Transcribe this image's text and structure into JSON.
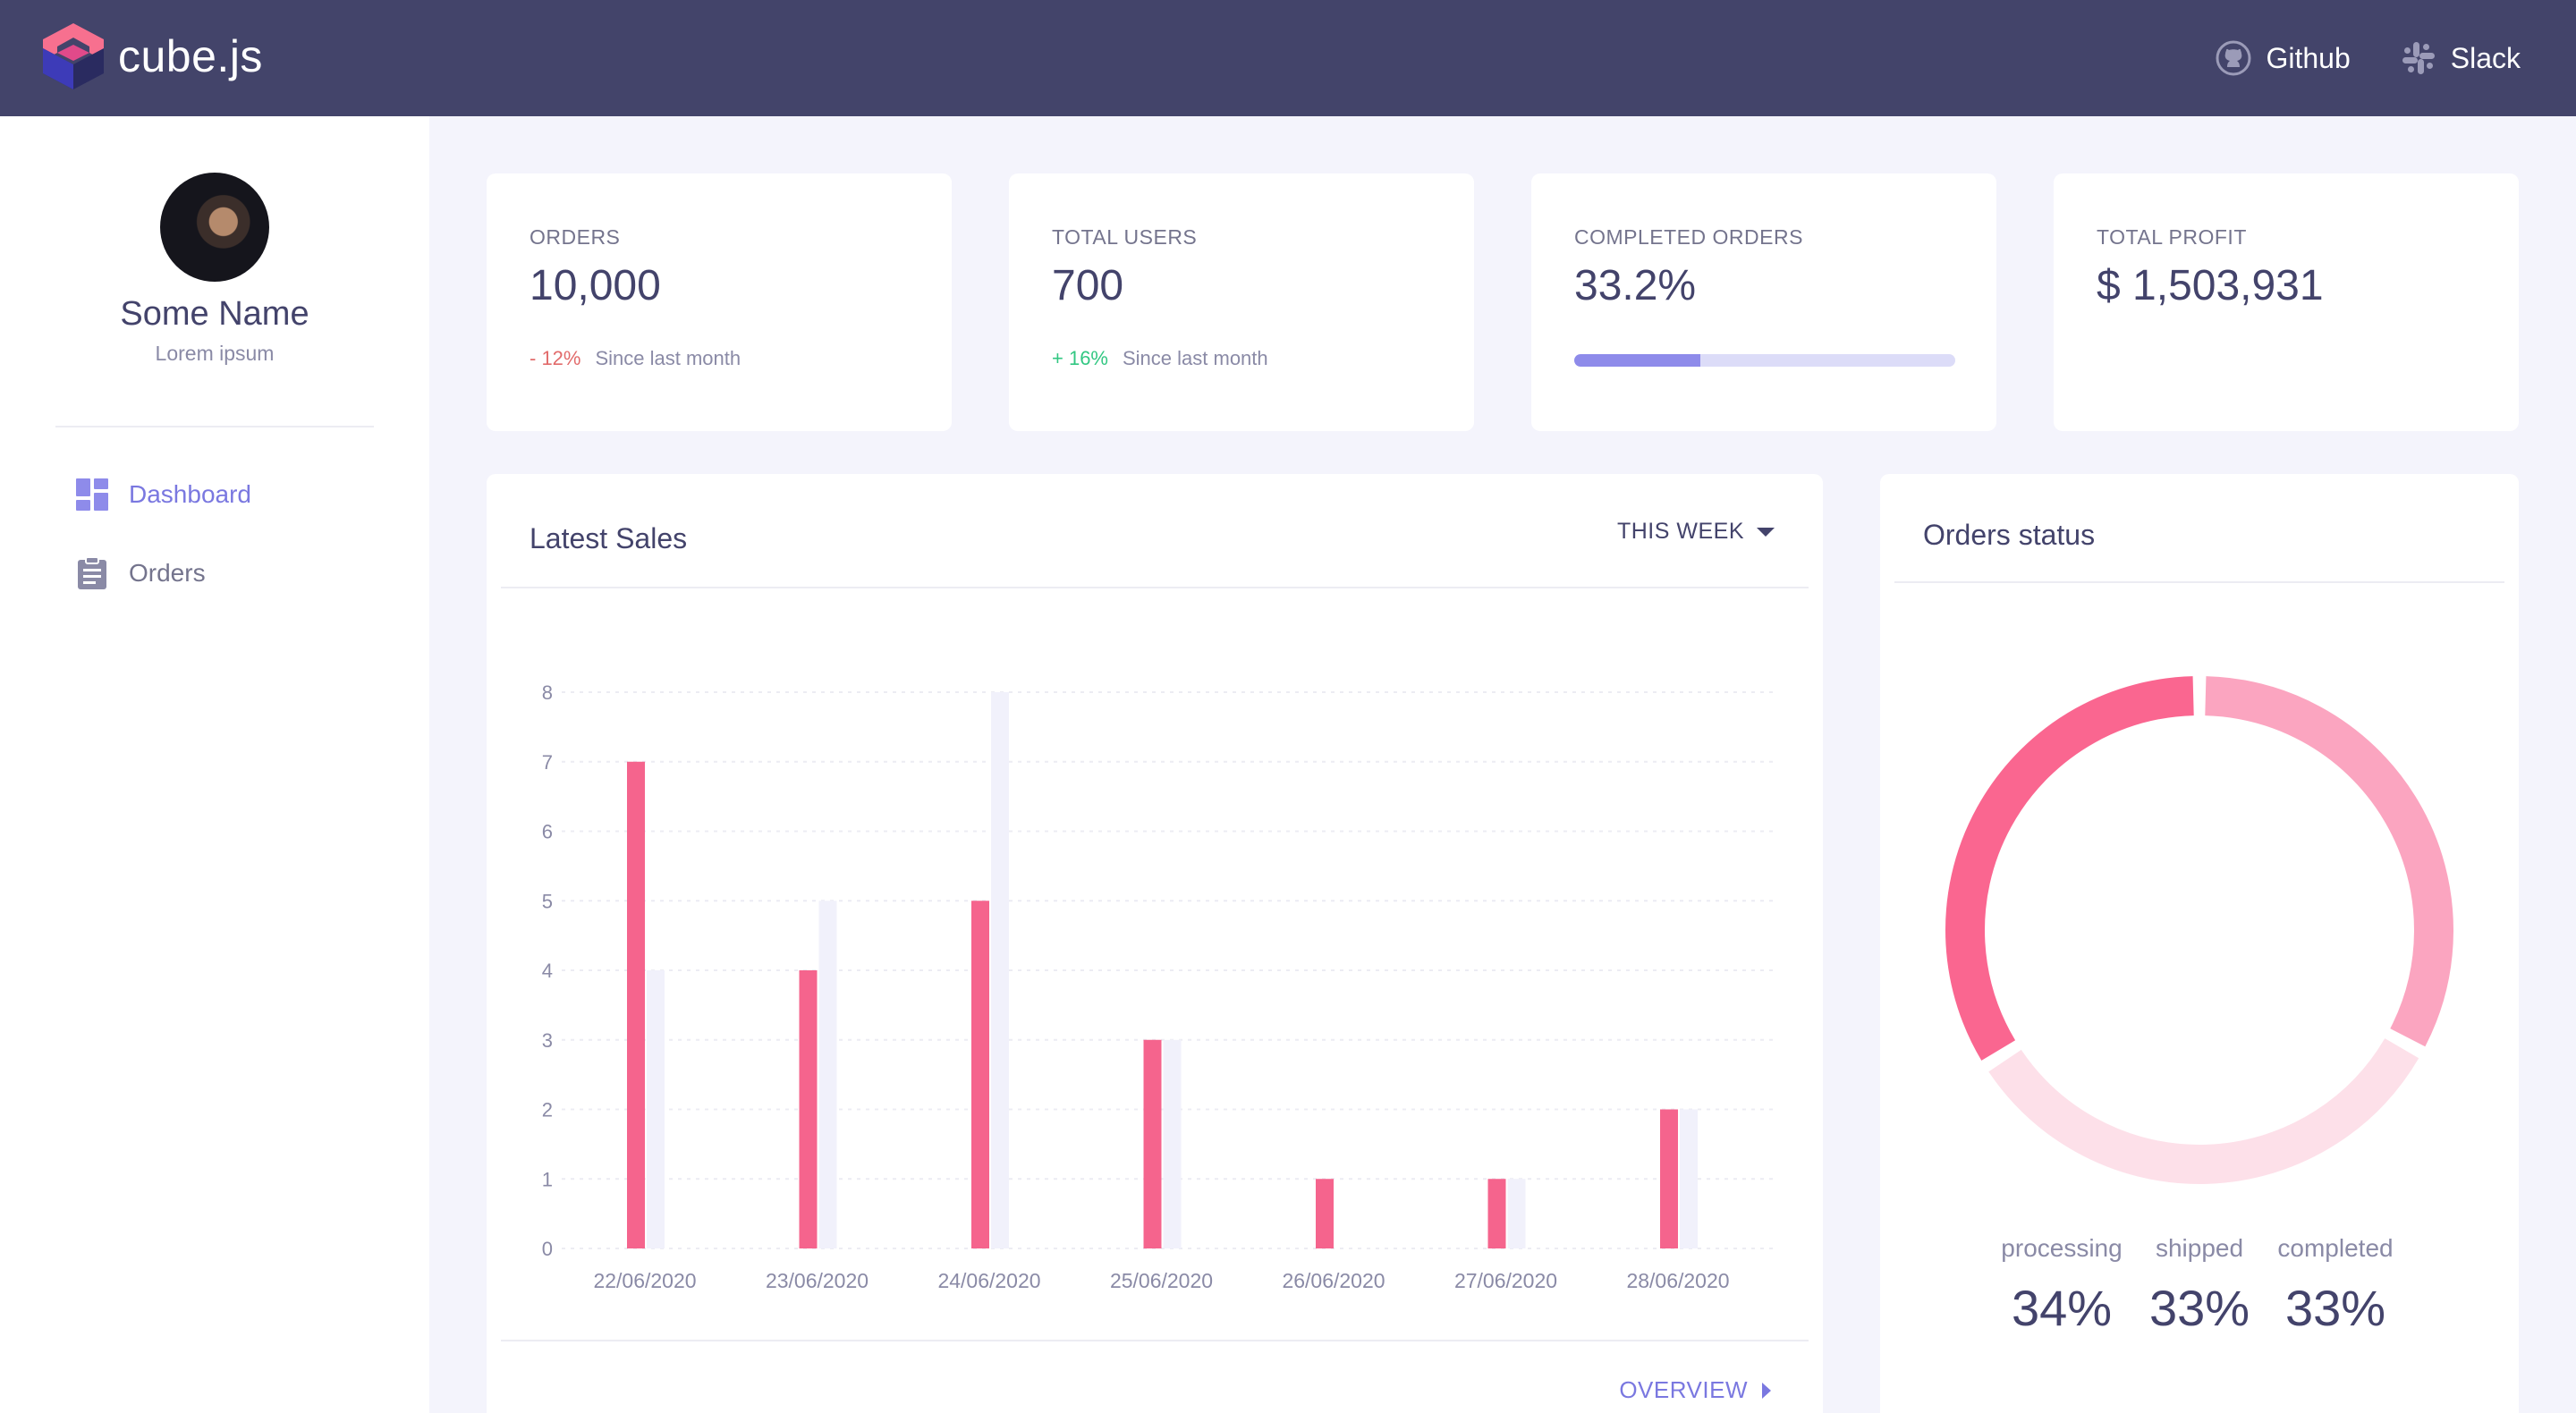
{
  "app": {
    "logo_text": "cube.js"
  },
  "topbar": {
    "links": [
      {
        "label": "Github",
        "icon": "github-icon"
      },
      {
        "label": "Slack",
        "icon": "slack-icon"
      }
    ]
  },
  "sidebar": {
    "user": {
      "name": "Some Name",
      "subtitle": "Lorem ipsum"
    },
    "items": [
      {
        "label": "Dashboard",
        "icon": "dashboard-icon",
        "active": true
      },
      {
        "label": "Orders",
        "icon": "clipboard-icon",
        "active": false
      }
    ]
  },
  "stats": {
    "orders": {
      "label": "ORDERS",
      "value": "10,000",
      "delta": "- 12%",
      "note": "Since last month"
    },
    "users": {
      "label": "TOTAL USERS",
      "value": "700",
      "delta": "+ 16%",
      "note": "Since last month"
    },
    "completed": {
      "label": "COMPLETED ORDERS",
      "value": "33.2%",
      "progress": 0.332
    },
    "profit": {
      "label": "TOTAL PROFIT",
      "value": "$ 1,503,931"
    }
  },
  "sales": {
    "title": "Latest Sales",
    "range": "THIS WEEK",
    "overview": "OVERVIEW"
  },
  "status": {
    "title": "Orders status"
  },
  "colors": {
    "topbar": "#43446a",
    "accent": "#7a78e0",
    "bar_primary": "#f5648d",
    "bar_secondary": "#f1f1fb",
    "processing": "#fa6690",
    "shipped": "#fba5c0",
    "completed": "#fde0e9",
    "negative": "#e26b6b",
    "positive": "#32c782"
  },
  "chart_data": [
    {
      "type": "bar",
      "title": "Latest Sales",
      "categories": [
        "22/06/2020",
        "23/06/2020",
        "24/06/2020",
        "25/06/2020",
        "26/06/2020",
        "27/06/2020",
        "28/06/2020"
      ],
      "series": [
        {
          "values": [
            7,
            4,
            5,
            3,
            1,
            1,
            2
          ],
          "color": "#f5648d"
        },
        {
          "values": [
            4,
            5,
            8,
            3,
            0,
            1,
            2
          ],
          "color": "#f1f1fb"
        }
      ],
      "yticks": [
        "0",
        "1",
        "2",
        "3",
        "4",
        "5",
        "6",
        "7",
        "8"
      ],
      "ylim": [
        0,
        8
      ],
      "grid": true
    },
    {
      "type": "pie",
      "title": "Orders status",
      "donut": true,
      "slices": [
        {
          "label": "processing",
          "value": 34,
          "display": "34%",
          "color": "#fa6690"
        },
        {
          "label": "shipped",
          "value": 33,
          "display": "33%",
          "color": "#fba5c0"
        },
        {
          "label": "completed",
          "value": 33,
          "display": "33%",
          "color": "#fde0e9"
        }
      ]
    }
  ]
}
